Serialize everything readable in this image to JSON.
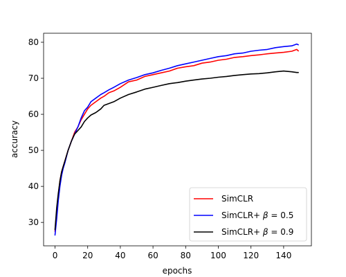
{
  "chart_data": {
    "type": "line",
    "title": "",
    "xlabel": "epochs",
    "ylabel": "accuracy",
    "xlim": [
      -7,
      157
    ],
    "ylim": [
      23.5,
      82.5
    ],
    "xticks": [
      0,
      20,
      40,
      60,
      80,
      100,
      120,
      140
    ],
    "yticks": [
      30,
      40,
      50,
      60,
      70,
      80
    ],
    "grid": false,
    "legend_position": "bottom-right",
    "series": [
      {
        "name": "SimCLR",
        "legend_parts": [
          "SimCLR"
        ],
        "color": "#ff0000",
        "x": [
          0,
          1,
          2,
          3,
          4,
          5,
          6,
          8,
          10,
          12,
          14,
          16,
          18,
          20,
          22,
          25,
          28,
          30,
          33,
          36,
          40,
          45,
          50,
          55,
          60,
          65,
          70,
          75,
          80,
          85,
          90,
          95,
          100,
          105,
          110,
          115,
          120,
          125,
          130,
          135,
          140,
          145,
          148,
          149
        ],
        "y": [
          27.5,
          33.0,
          37.5,
          41.5,
          44.0,
          45.5,
          47.0,
          50.0,
          52.5,
          55.0,
          56.5,
          58.5,
          60.0,
          61.5,
          62.5,
          63.5,
          64.5,
          65.0,
          66.0,
          66.5,
          67.5,
          69.0,
          69.5,
          70.5,
          71.0,
          71.5,
          72.0,
          72.8,
          73.2,
          73.5,
          74.2,
          74.5,
          75.0,
          75.3,
          75.8,
          76.0,
          76.3,
          76.5,
          76.8,
          77.0,
          77.2,
          77.5,
          78.0,
          77.6
        ]
      },
      {
        "name": "SimCLR+ β = 0.5",
        "legend_parts": [
          "SimCLR+ ",
          "β",
          " = 0.5"
        ],
        "color": "#0000ff",
        "x": [
          0,
          1,
          2,
          3,
          4,
          5,
          6,
          8,
          10,
          12,
          14,
          16,
          18,
          20,
          22,
          25,
          28,
          30,
          33,
          36,
          40,
          45,
          50,
          55,
          60,
          65,
          70,
          75,
          80,
          85,
          90,
          95,
          100,
          105,
          110,
          115,
          120,
          125,
          130,
          135,
          140,
          145,
          148,
          149
        ],
        "y": [
          26.5,
          31.0,
          36.0,
          40.0,
          43.0,
          45.0,
          46.5,
          50.0,
          52.5,
          54.5,
          56.5,
          59.0,
          61.0,
          62.0,
          63.5,
          64.5,
          65.5,
          66.0,
          66.8,
          67.5,
          68.5,
          69.5,
          70.2,
          71.0,
          71.5,
          72.2,
          72.8,
          73.5,
          74.0,
          74.5,
          75.0,
          75.5,
          76.0,
          76.3,
          76.8,
          77.0,
          77.5,
          77.8,
          78.0,
          78.5,
          78.8,
          79.0,
          79.5,
          79.3
        ]
      },
      {
        "name": "SimCLR+ β = 0.9",
        "legend_parts": [
          "SimCLR+ ",
          "β",
          " = 0.9"
        ],
        "color": "#000000",
        "x": [
          0,
          1,
          2,
          3,
          4,
          5,
          6,
          8,
          10,
          12,
          14,
          16,
          18,
          20,
          22,
          25,
          28,
          30,
          33,
          36,
          40,
          45,
          50,
          55,
          60,
          65,
          70,
          75,
          80,
          85,
          90,
          95,
          100,
          105,
          110,
          115,
          120,
          125,
          130,
          135,
          140,
          145,
          148,
          149
        ],
        "y": [
          28.0,
          34.0,
          38.0,
          41.5,
          44.0,
          45.5,
          47.0,
          50.0,
          52.5,
          54.5,
          55.5,
          56.5,
          58.0,
          59.0,
          59.8,
          60.5,
          61.5,
          62.5,
          63.0,
          63.5,
          64.5,
          65.5,
          66.2,
          67.0,
          67.5,
          68.0,
          68.5,
          68.8,
          69.2,
          69.5,
          69.8,
          70.0,
          70.3,
          70.5,
          70.8,
          71.0,
          71.2,
          71.3,
          71.5,
          71.8,
          72.0,
          71.8,
          71.6,
          71.6
        ]
      }
    ]
  }
}
